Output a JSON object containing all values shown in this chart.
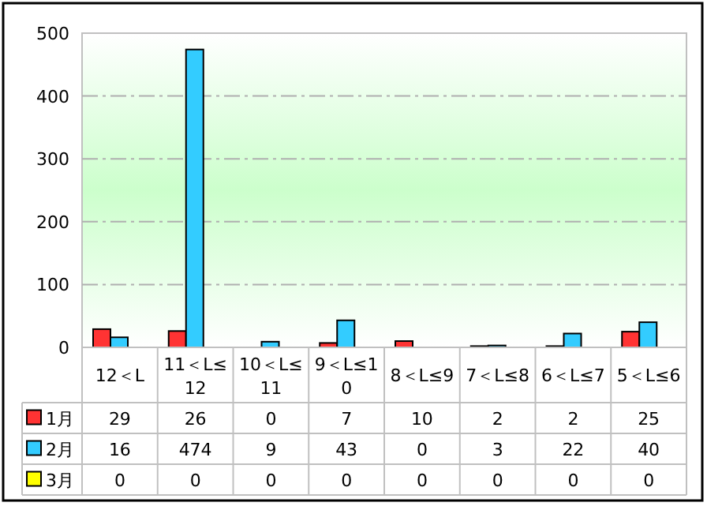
{
  "chart_data": {
    "type": "bar",
    "categories": [
      "12＜L",
      "11＜L≤12",
      "10＜L≤11",
      "9＜L≤10",
      "8＜L≤9",
      "7＜L≤8",
      "6＜L≤7",
      "5＜L≤6"
    ],
    "series": [
      {
        "name": "1月",
        "color": "#ff3333",
        "values": [
          29,
          26,
          0,
          7,
          10,
          2,
          2,
          25
        ]
      },
      {
        "name": "2月",
        "color": "#33ccff",
        "values": [
          16,
          474,
          9,
          43,
          0,
          3,
          22,
          40
        ]
      },
      {
        "name": "3月",
        "color": "#ffff00",
        "values": [
          0,
          0,
          0,
          0,
          0,
          0,
          0,
          0
        ]
      }
    ],
    "ylim": [
      0,
      500
    ],
    "yticks": [
      0,
      100,
      200,
      300,
      400,
      500
    ],
    "grid": "y",
    "legend": "bottom",
    "data_labels": true
  }
}
